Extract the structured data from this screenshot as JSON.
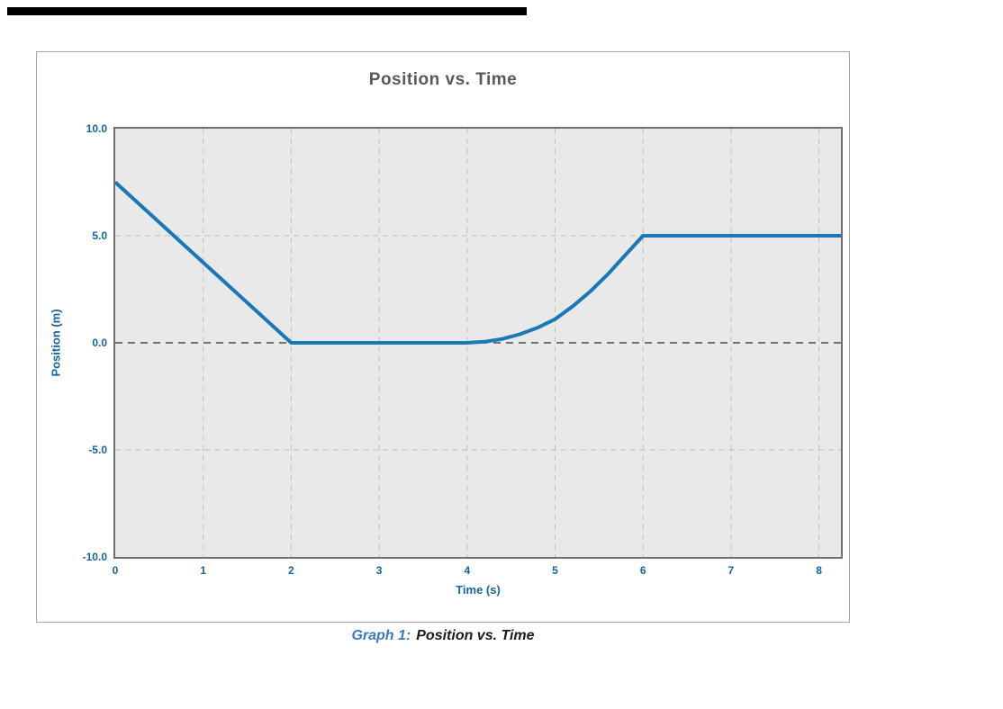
{
  "page": {
    "caption_prefix": "Graph 1:",
    "caption_text": "Position vs. Time"
  },
  "chart_data": {
    "type": "line",
    "title": "Position vs. Time",
    "xlabel": "Time (s)",
    "ylabel": "Position (m)",
    "xlim": [
      0,
      8.25
    ],
    "ylim": [
      -10,
      10
    ],
    "x_ticks": [
      0,
      1,
      2,
      3,
      4,
      5,
      6,
      7,
      8
    ],
    "y_ticks": [
      10.0,
      5.0,
      0.0,
      -5.0,
      -10.0
    ],
    "y_tick_labels": [
      "10.0",
      "5.0",
      "0.0",
      "-5.0",
      "-10.0"
    ],
    "grid": true,
    "zero_line": true,
    "legend": "none",
    "plot_background": "#e9e9e9",
    "gridline_color": "#bdbdbd",
    "zero_line_color": "#4d4d4d",
    "series": [
      {
        "name": "position",
        "color": "#1878b8",
        "points": [
          [
            0,
            7.5
          ],
          [
            2,
            0
          ],
          [
            4,
            0
          ],
          [
            4.2,
            0.05
          ],
          [
            4.4,
            0.18
          ],
          [
            4.6,
            0.4
          ],
          [
            4.8,
            0.7
          ],
          [
            5.0,
            1.1
          ],
          [
            5.2,
            1.7
          ],
          [
            5.4,
            2.4
          ],
          [
            5.6,
            3.2
          ],
          [
            5.8,
            4.1
          ],
          [
            6.0,
            5.0
          ],
          [
            8.25,
            5.0
          ]
        ]
      }
    ]
  }
}
